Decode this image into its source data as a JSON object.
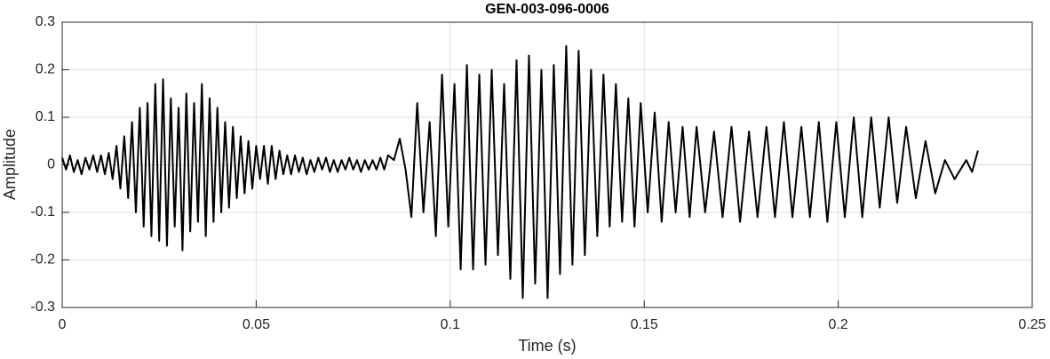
{
  "chart_data": {
    "type": "line",
    "title": "GEN-003-096-0006",
    "x_label": "Time (s)",
    "y_label": "Amplitude",
    "color": "#000000",
    "grid": true,
    "xlim": [
      0,
      0.25
    ],
    "xticks": [
      0,
      0.05,
      0.1,
      0.15,
      0.2,
      0.25
    ],
    "ylim": [
      -0.3,
      0.3
    ],
    "yticks": [
      -0.3,
      -0.2,
      -0.1,
      0,
      0.1,
      0.2,
      0.3
    ],
    "x": [
      0,
      0.001,
      0.002,
      0.003,
      0.004,
      0.005,
      0.006,
      0.007,
      0.008,
      0.009,
      0.01,
      0.011,
      0.012,
      0.013,
      0.014,
      0.015,
      0.016,
      0.017,
      0.018,
      0.019,
      0.02,
      0.021,
      0.022,
      0.023,
      0.024,
      0.025,
      0.026,
      0.027,
      0.028,
      0.029,
      0.03,
      0.031,
      0.032,
      0.033,
      0.034,
      0.035,
      0.036,
      0.037,
      0.038,
      0.039,
      0.04,
      0.041,
      0.042,
      0.043,
      0.044,
      0.045,
      0.046,
      0.047,
      0.048,
      0.049,
      0.05,
      0.051,
      0.052,
      0.053,
      0.054,
      0.055,
      0.056,
      0.057,
      0.058,
      0.059,
      0.06,
      0.061,
      0.062,
      0.063,
      0.064,
      0.065,
      0.066,
      0.067,
      0.068,
      0.069,
      0.07,
      0.071,
      0.072,
      0.073,
      0.074,
      0.075,
      0.076,
      0.077,
      0.078,
      0.079,
      0.08,
      0.081,
      0.082,
      0.083,
      0.084,
      0.0855,
      0.087,
      0.0885,
      0.09,
      0.0915,
      0.0931,
      0.0947,
      0.0963,
      0.0979,
      0.0995,
      0.1011,
      0.1027,
      0.1043,
      0.1059,
      0.1075,
      0.1091,
      0.1107,
      0.1123,
      0.1139,
      0.1155,
      0.1171,
      0.1187,
      0.1203,
      0.1219,
      0.1235,
      0.1251,
      0.1267,
      0.1283,
      0.1299,
      0.1315,
      0.1331,
      0.1347,
      0.1363,
      0.1379,
      0.1395,
      0.1411,
      0.1427,
      0.1443,
      0.1459,
      0.1475,
      0.1491,
      0.1509,
      0.1527,
      0.1545,
      0.1563,
      0.1581,
      0.1599,
      0.1617,
      0.1635,
      0.1657,
      0.168,
      0.1702,
      0.1725,
      0.1747,
      0.177,
      0.1792,
      0.1815,
      0.1837,
      0.186,
      0.1882,
      0.1905,
      0.1927,
      0.195,
      0.1972,
      0.1995,
      0.2017,
      0.204,
      0.2062,
      0.2085,
      0.2107,
      0.213,
      0.2152,
      0.2175,
      0.22,
      0.2225,
      0.225,
      0.2275,
      0.23,
      0.233,
      0.2345,
      0.236
    ],
    "values": [
      0.015,
      -0.01,
      0.02,
      -0.015,
      0.01,
      -0.02,
      0.015,
      -0.01,
      0.02,
      -0.015,
      0.02,
      -0.02,
      0.025,
      -0.03,
      0.04,
      -0.05,
      0.06,
      -0.07,
      0.09,
      -0.1,
      0.12,
      -0.13,
      0.13,
      -0.15,
      0.17,
      -0.16,
      0.18,
      -0.17,
      0.14,
      -0.13,
      0.12,
      -0.18,
      0.15,
      -0.14,
      0.13,
      -0.12,
      0.17,
      -0.15,
      0.14,
      -0.12,
      0.12,
      -0.1,
      0.09,
      -0.09,
      0.08,
      -0.07,
      0.06,
      -0.06,
      0.05,
      -0.05,
      0.04,
      -0.03,
      0.04,
      -0.04,
      0.04,
      -0.03,
      0.03,
      -0.02,
      0.02,
      -0.02,
      0.02,
      -0.015,
      0.015,
      -0.02,
      0.01,
      -0.015,
      0.015,
      -0.01,
      0.015,
      -0.015,
      0.01,
      -0.015,
      0.01,
      -0.01,
      0.015,
      -0.01,
      0.01,
      -0.015,
      0.01,
      -0.01,
      0.01,
      -0.01,
      0.015,
      -0.01,
      0.02,
      0.01,
      0.055,
      -0.01,
      -0.11,
      0.13,
      -0.1,
      0.09,
      -0.15,
      0.19,
      -0.13,
      0.17,
      -0.22,
      0.21,
      -0.22,
      0.19,
      -0.21,
      0.2,
      -0.19,
      0.17,
      -0.24,
      0.22,
      -0.28,
      0.23,
      -0.25,
      0.2,
      -0.28,
      0.21,
      -0.23,
      0.25,
      -0.21,
      0.24,
      -0.19,
      0.2,
      -0.15,
      0.19,
      -0.13,
      0.17,
      -0.12,
      0.14,
      -0.13,
      0.13,
      -0.1,
      0.11,
      -0.12,
      0.09,
      -0.1,
      0.08,
      -0.11,
      0.08,
      -0.1,
      0.07,
      -0.11,
      0.08,
      -0.12,
      0.07,
      -0.11,
      0.08,
      -0.11,
      0.09,
      -0.11,
      0.08,
      -0.11,
      0.09,
      -0.12,
      0.09,
      -0.11,
      0.1,
      -0.11,
      0.1,
      -0.09,
      0.1,
      -0.08,
      0.08,
      -0.07,
      0.05,
      -0.06,
      0.01,
      -0.03,
      0.01,
      -0.015,
      0.03
    ]
  }
}
